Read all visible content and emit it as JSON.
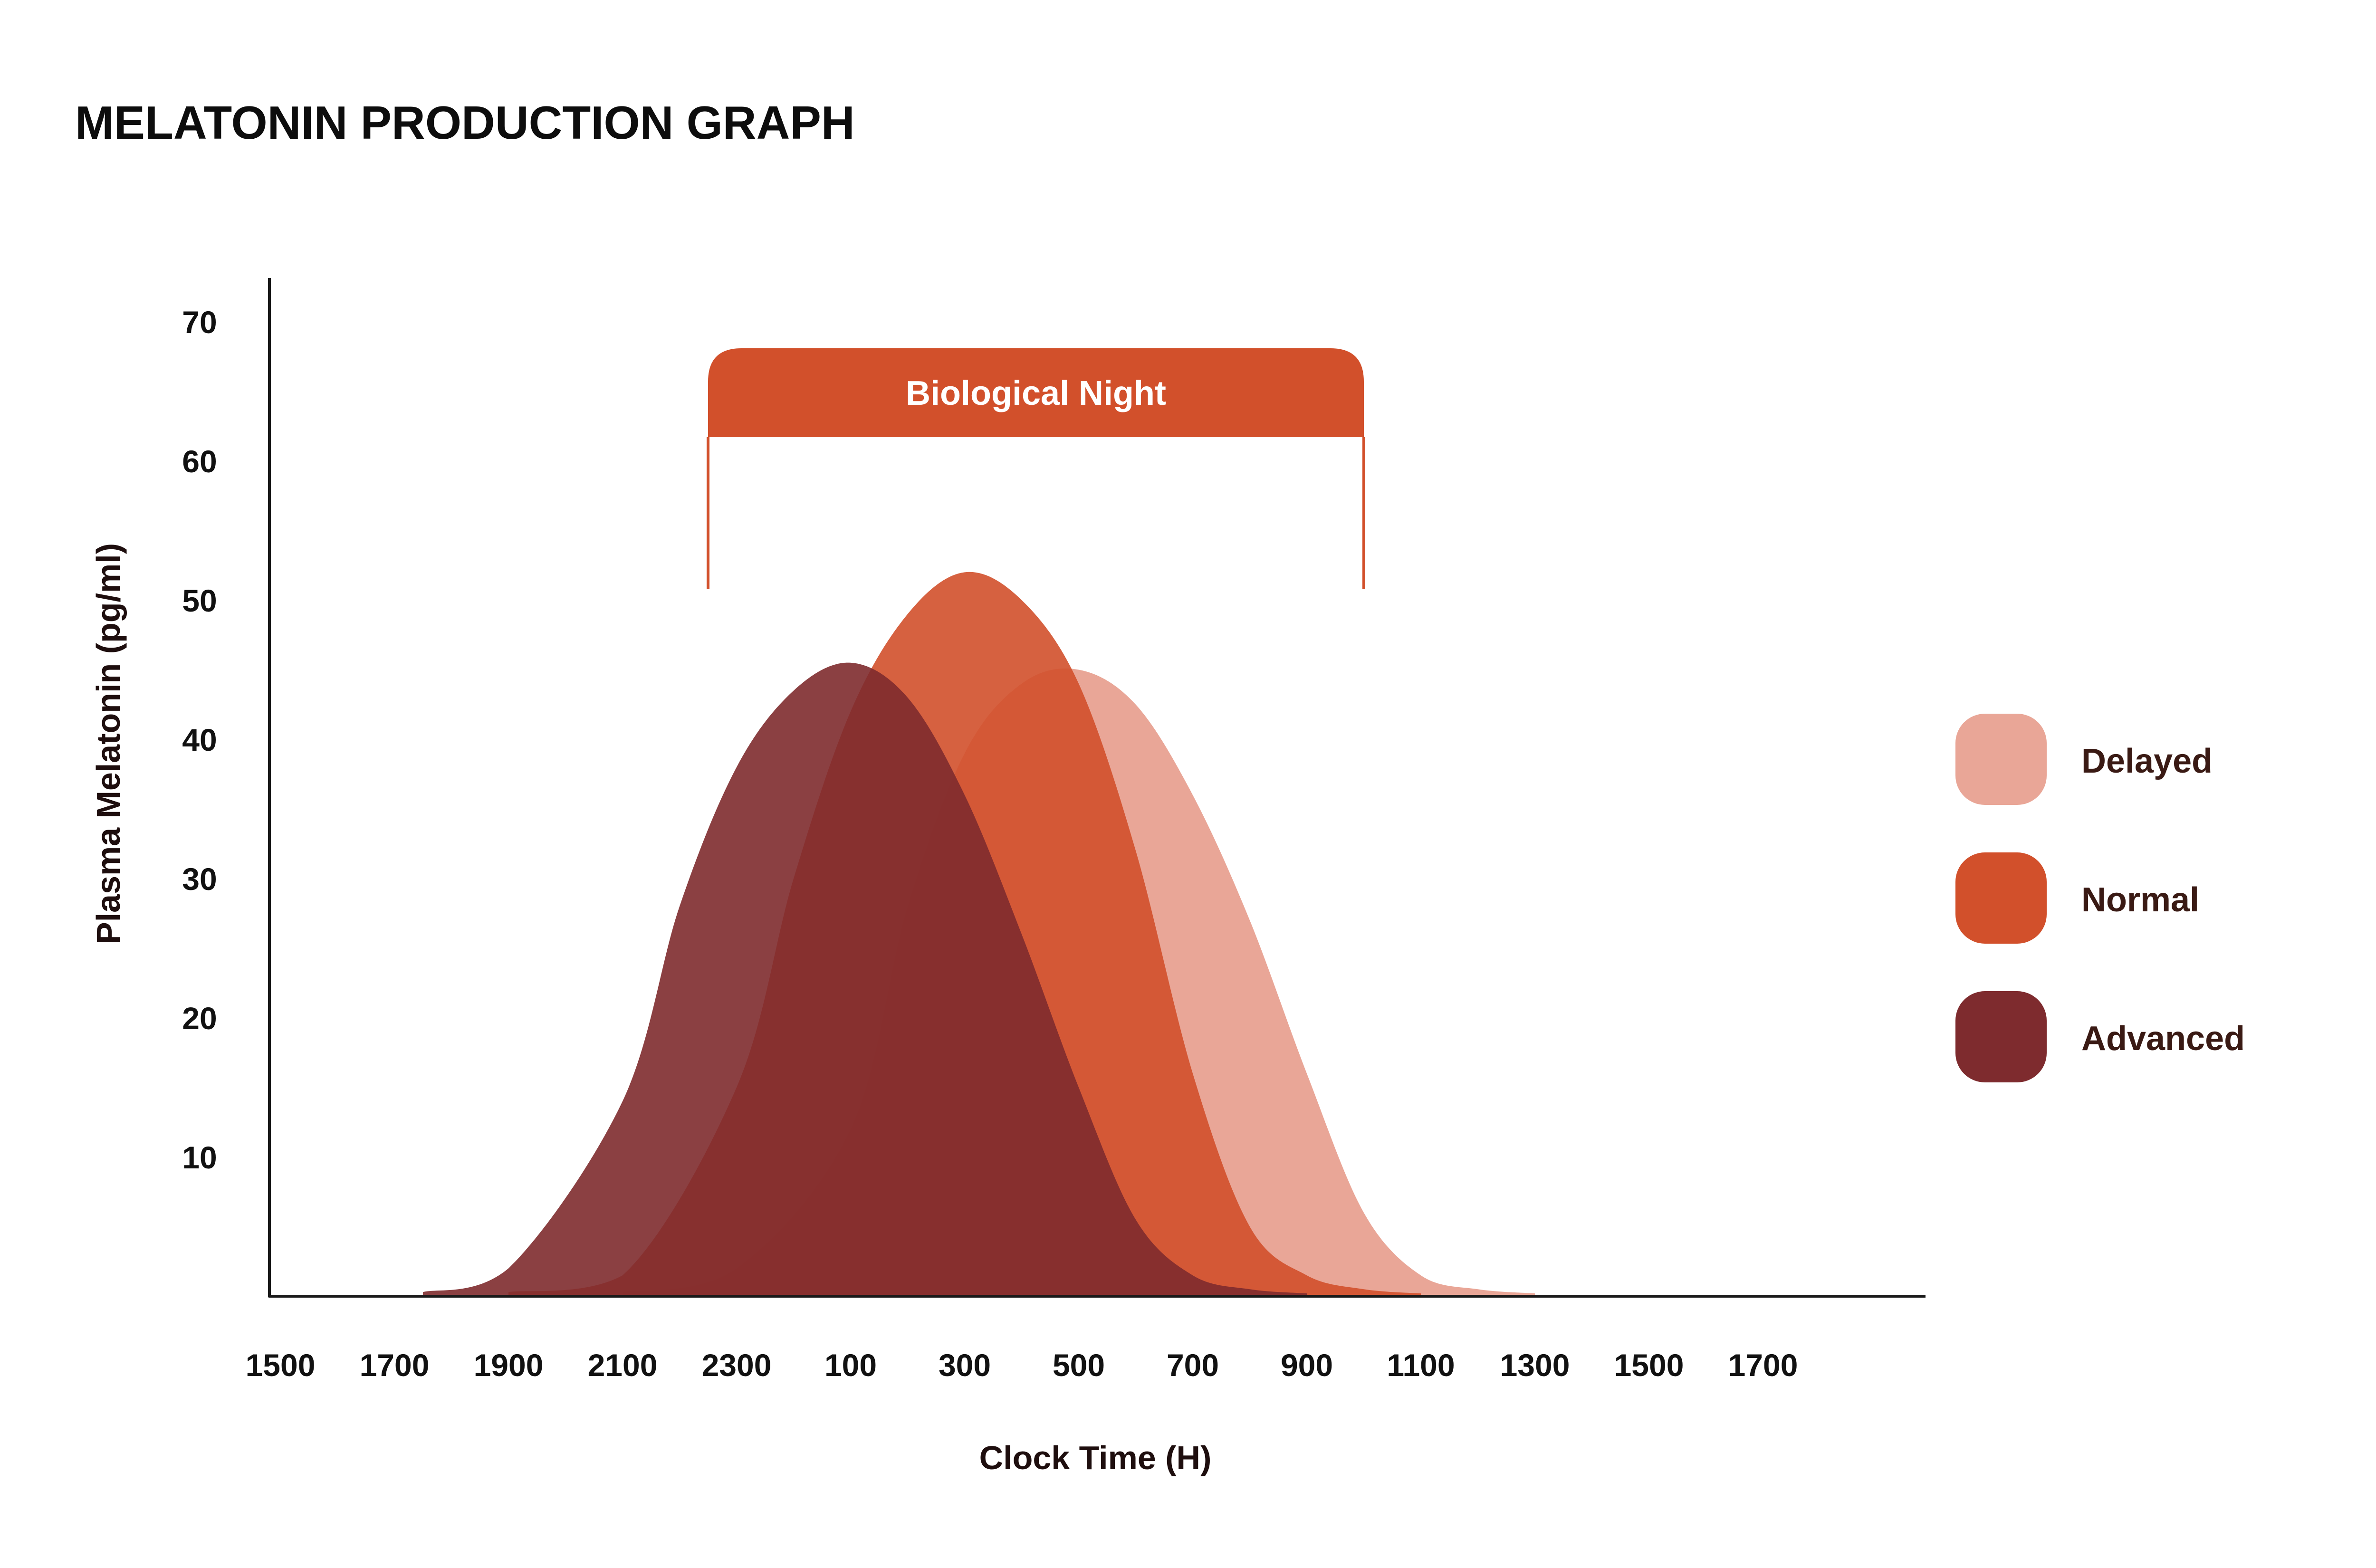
{
  "chart_data": {
    "type": "area",
    "title": "MELATONIN PRODUCTION GRAPH",
    "xlabel": "Clock Time (H)",
    "ylabel": "Plasma Melatonin (pg/ml)",
    "x_ticks": [
      "1500",
      "1700",
      "1900",
      "2100",
      "2300",
      "100",
      "300",
      "500",
      "700",
      "900",
      "1100",
      "1300",
      "1500",
      "1700"
    ],
    "y_ticks": [
      10,
      20,
      30,
      40,
      50,
      60,
      70
    ],
    "ylim": [
      0,
      75
    ],
    "legend_position": "right",
    "annotation": {
      "label": "Biological Night",
      "from_hour": 22.5,
      "to_hour": 10.0
    },
    "series": [
      {
        "name": "Delayed",
        "color": "#e9a697",
        "points": [
          [
            21.0,
            0.3
          ],
          [
            23.0,
            2.0
          ],
          [
            1.0,
            12.0
          ],
          [
            2.0,
            28.0
          ],
          [
            3.0,
            39.0
          ],
          [
            4.0,
            44.0
          ],
          [
            5.0,
            45.0
          ],
          [
            6.0,
            42.5
          ],
          [
            7.0,
            36.0
          ],
          [
            8.0,
            27.0
          ],
          [
            9.0,
            16.0
          ],
          [
            10.0,
            6.0
          ],
          [
            11.0,
            1.5
          ],
          [
            12.0,
            0.5
          ],
          [
            13.0,
            0.2
          ]
        ]
      },
      {
        "name": "Normal",
        "color": "#d2502b",
        "points": [
          [
            19.0,
            0.3
          ],
          [
            21.0,
            1.5
          ],
          [
            23.0,
            15.0
          ],
          [
            0.0,
            30.0
          ],
          [
            1.0,
            42.0
          ],
          [
            2.0,
            49.0
          ],
          [
            3.0,
            52.0
          ],
          [
            4.0,
            50.0
          ],
          [
            5.0,
            44.0
          ],
          [
            6.0,
            32.0
          ],
          [
            7.0,
            16.0
          ],
          [
            8.0,
            5.0
          ],
          [
            9.0,
            1.5
          ],
          [
            10.0,
            0.5
          ],
          [
            11.0,
            0.2
          ]
        ]
      },
      {
        "name": "Advanced",
        "color": "#7e2b2e",
        "points": [
          [
            17.5,
            0.3
          ],
          [
            19.0,
            2.0
          ],
          [
            21.0,
            14.0
          ],
          [
            22.0,
            28.0
          ],
          [
            23.0,
            38.0
          ],
          [
            0.0,
            43.5
          ],
          [
            1.0,
            45.5
          ],
          [
            2.0,
            43.0
          ],
          [
            3.0,
            36.0
          ],
          [
            4.0,
            26.0
          ],
          [
            5.0,
            15.0
          ],
          [
            6.0,
            5.5
          ],
          [
            7.0,
            1.5
          ],
          [
            8.0,
            0.5
          ],
          [
            9.0,
            0.2
          ]
        ]
      }
    ]
  },
  "legend": [
    {
      "label": "Delayed",
      "color": "#e9a697"
    },
    {
      "label": "Normal",
      "color": "#d2502b"
    },
    {
      "label": "Advanced",
      "color": "#7e2b2e"
    }
  ],
  "colors": {
    "axis": "#1a1a1a",
    "night_bar": "#d2502b"
  }
}
